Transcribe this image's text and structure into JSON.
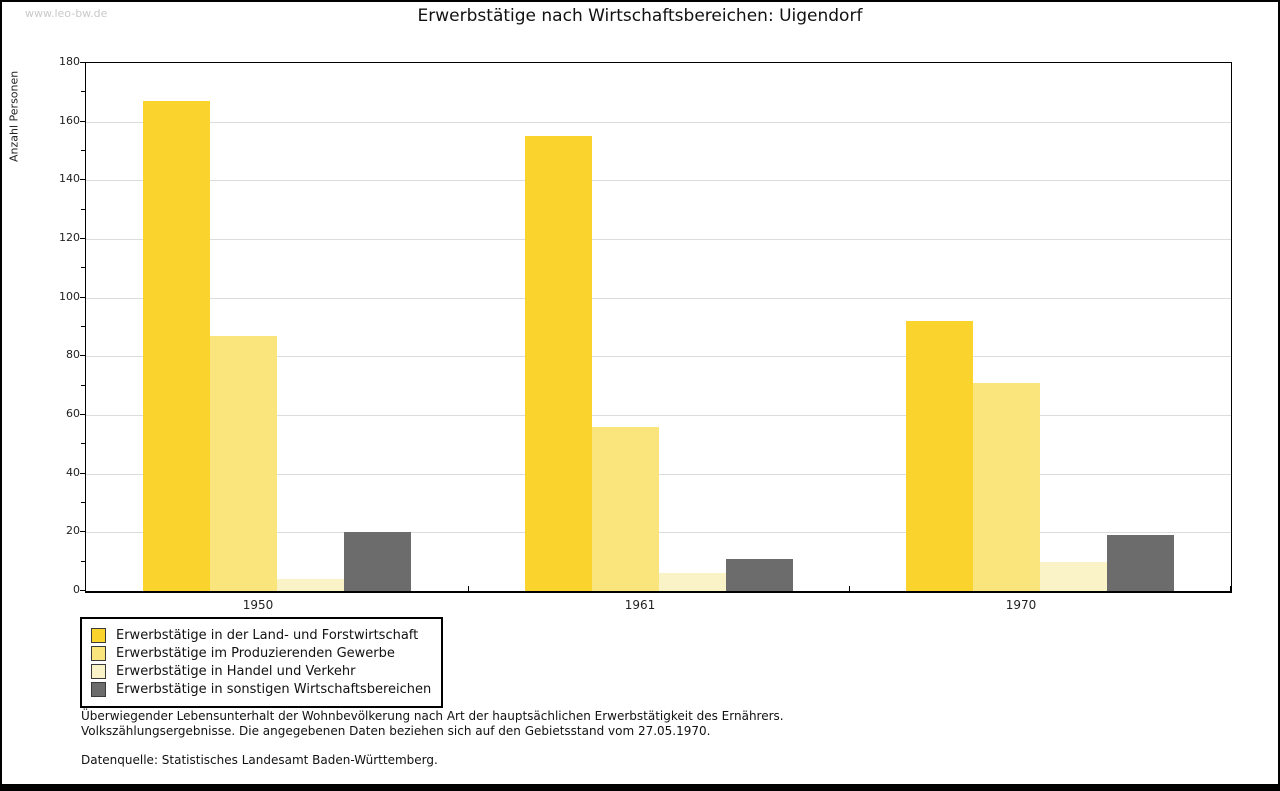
{
  "watermark": "www.leo-bw.de",
  "title": "Erwerbstätige nach Wirtschaftsbereichen: Uigendorf",
  "chart_data": {
    "type": "bar",
    "title": "Erwerbstätige nach Wirtschaftsbereichen: Uigendorf",
    "xlabel": "",
    "ylabel": "Anzahl Personen",
    "ylim": [
      0,
      180
    ],
    "ytick_step": 20,
    "yminor_step": 10,
    "grid": "horizontal",
    "legend_position": "bottom-left",
    "categories": [
      "1950",
      "1961",
      "1970"
    ],
    "series": [
      {
        "name": "Erwerbstätige in der Land- und Forstwirtschaft",
        "color": "#fbd32d",
        "values": [
          167,
          155,
          92
        ]
      },
      {
        "name": "Erwerbstätige im Produzierenden Gewerbe",
        "color": "#fae57d",
        "values": [
          87,
          56,
          71
        ]
      },
      {
        "name": "Erwerbstätige in Handel und Verkehr",
        "color": "#faf3c8",
        "values": [
          4,
          6,
          10
        ]
      },
      {
        "name": "Erwerbstätige in sonstigen Wirtschaftsbereichen",
        "color": "#6c6c6c",
        "values": [
          20,
          11,
          19
        ]
      }
    ]
  },
  "notes": {
    "line1": "Überwiegender Lebensunterhalt der Wohnbevölkerung nach Art der hauptsächlichen Erwerbstätigkeit des Ernährers.",
    "line2": "Volkszählungsergebnisse. Die angegebenen Daten beziehen sich auf den Gebietsstand vom 27.05.1970.",
    "source": "Datenquelle: Statistisches Landesamt Baden-Württemberg."
  },
  "colors": {
    "gridline": "#dcdcdc",
    "axis": "#000000",
    "watermark": "#c9c9c9",
    "background": "#ffffff",
    "frame": "#000000"
  }
}
